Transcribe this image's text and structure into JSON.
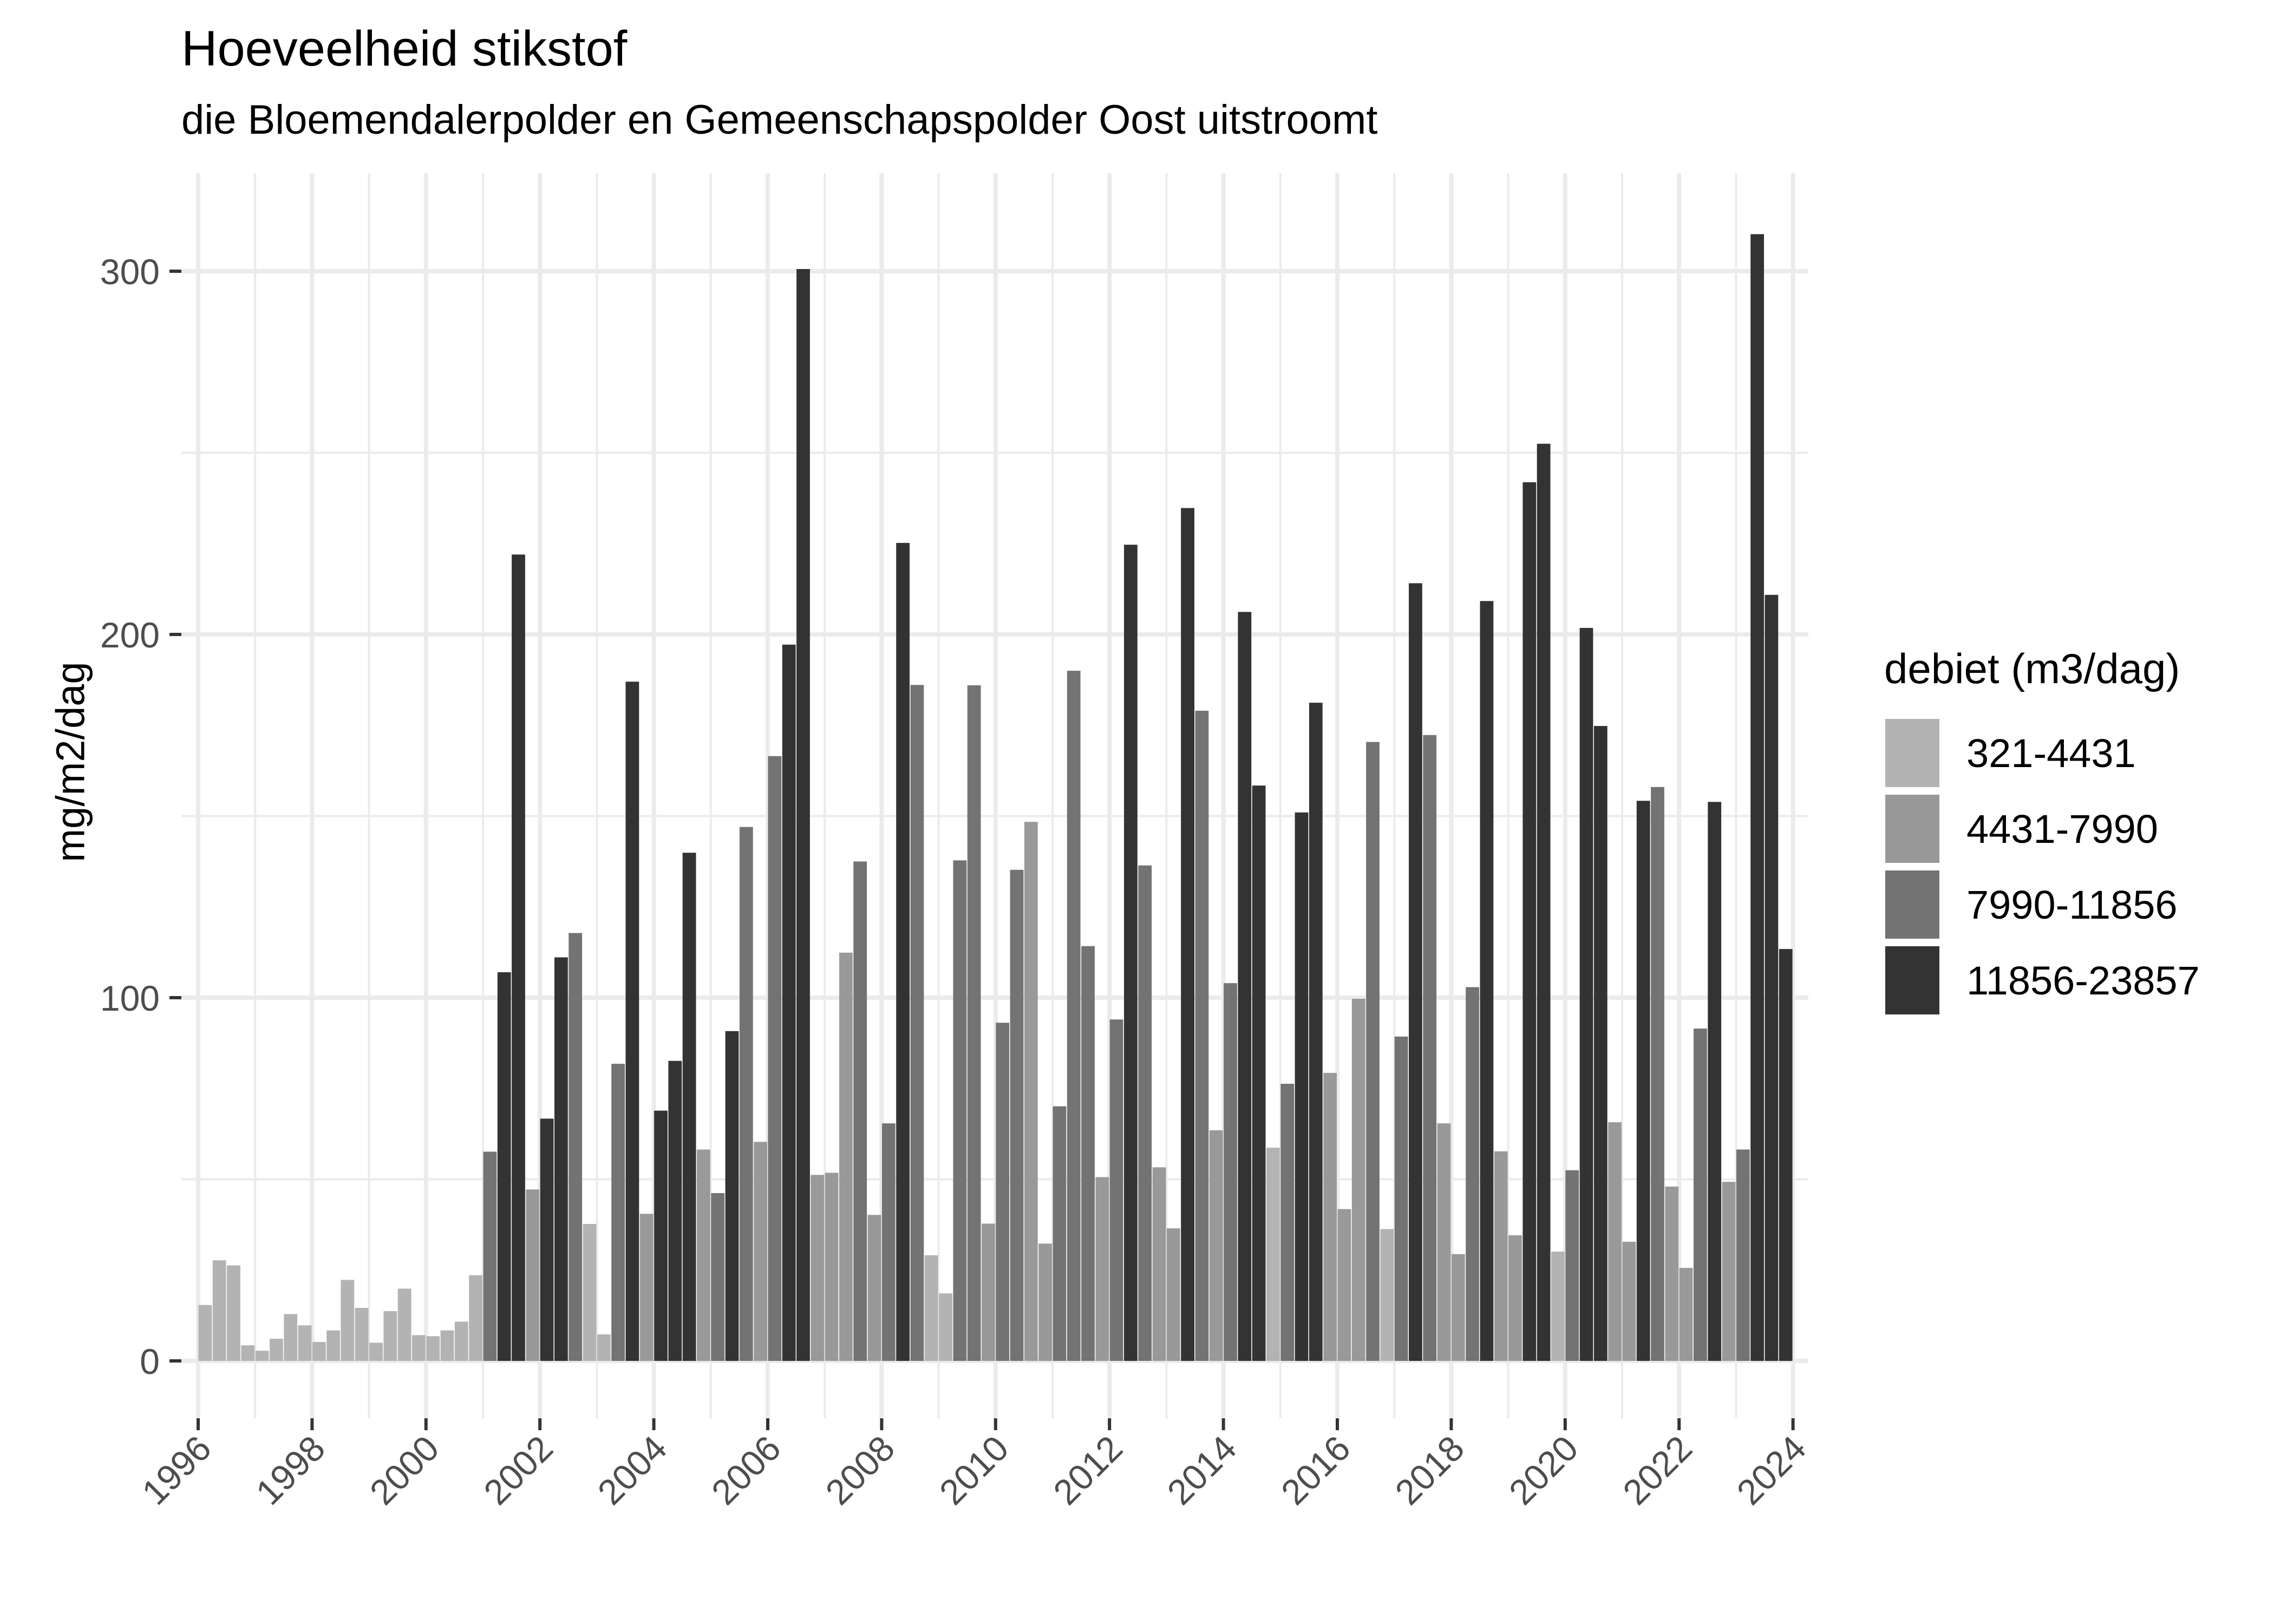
{
  "chart": {
    "title": "Hoeveelheid stikstof",
    "subtitle": "die Bloemendalerpolder en Gemeenschapspolder Oost uitstroomt",
    "ylabel": "mg/m2/dag",
    "legend_title": "debiet (m3/dag)"
  },
  "legend": [
    {
      "label": "321-4431",
      "color": "#B3B3B3"
    },
    {
      "label": "4431-7990",
      "color": "#999999"
    },
    {
      "label": "7990-11856",
      "color": "#737373"
    },
    {
      "label": "11856-23857",
      "color": "#333333"
    }
  ],
  "axes": {
    "y_ticks": [
      0,
      100,
      200,
      300
    ],
    "x_ticks": [
      "1996",
      "1998",
      "2000",
      "2002",
      "2004",
      "2006",
      "2008",
      "2010",
      "2012",
      "2014",
      "2016",
      "2018",
      "2020",
      "2022",
      "2024"
    ]
  },
  "chart_data": {
    "type": "bar",
    "title": "Hoeveelheid stikstof",
    "subtitle": "die Bloemendalerpolder en Gemeenschapspolder Oost uitstroomt",
    "xlabel": "",
    "ylabel": "mg/m2/dag",
    "ylim": [
      0,
      325
    ],
    "xlim": [
      1996,
      2024
    ],
    "grid": true,
    "legend_position": "right",
    "legend_title": "debiet (m3/dag)",
    "x_tick_labels": [
      "1996",
      "1998",
      "2000",
      "2002",
      "2004",
      "2006",
      "2008",
      "2010",
      "2012",
      "2014",
      "2016",
      "2018",
      "2020",
      "2022",
      "2024"
    ],
    "y_tick_labels": [
      "0",
      "100",
      "200",
      "300"
    ],
    "categories_note": "quarterly bars, color = flow class",
    "classes": [
      "321-4431",
      "4431-7990",
      "7990-11856",
      "11856-23857"
    ],
    "bars": [
      {
        "period": "1996-Q1",
        "value": 15.4,
        "class": "321-4431"
      },
      {
        "period": "1996-Q2",
        "value": 27.7,
        "class": "321-4431"
      },
      {
        "period": "1996-Q3",
        "value": 26.3,
        "class": "321-4431"
      },
      {
        "period": "1996-Q4",
        "value": 4.3,
        "class": "321-4431"
      },
      {
        "period": "1997-Q1",
        "value": 2.8,
        "class": "321-4431"
      },
      {
        "period": "1997-Q2",
        "value": 6.1,
        "class": "321-4431"
      },
      {
        "period": "1997-Q3",
        "value": 12.9,
        "class": "321-4431"
      },
      {
        "period": "1997-Q4",
        "value": 9.8,
        "class": "321-4431"
      },
      {
        "period": "1998-Q1",
        "value": 5.2,
        "class": "321-4431"
      },
      {
        "period": "1998-Q2",
        "value": 8.4,
        "class": "321-4431"
      },
      {
        "period": "1998-Q3",
        "value": 22.3,
        "class": "321-4431"
      },
      {
        "period": "1998-Q4",
        "value": 14.6,
        "class": "321-4431"
      },
      {
        "period": "1999-Q1",
        "value": 5.0,
        "class": "321-4431"
      },
      {
        "period": "1999-Q2",
        "value": 13.7,
        "class": "321-4431"
      },
      {
        "period": "1999-Q3",
        "value": 19.9,
        "class": "321-4431"
      },
      {
        "period": "1999-Q4",
        "value": 7.1,
        "class": "321-4431"
      },
      {
        "period": "2000-Q1",
        "value": 6.8,
        "class": "321-4431"
      },
      {
        "period": "2000-Q2",
        "value": 8.4,
        "class": "321-4431"
      },
      {
        "period": "2000-Q3",
        "value": 10.8,
        "class": "321-4431"
      },
      {
        "period": "2000-Q4",
        "value": 23.6,
        "class": "321-4431"
      },
      {
        "period": "2001-Q1",
        "value": 57.6,
        "class": "7990-11856"
      },
      {
        "period": "2001-Q2",
        "value": 107.0,
        "class": "11856-23857"
      },
      {
        "period": "2001-Q3",
        "value": 222.0,
        "class": "11856-23857"
      },
      {
        "period": "2001-Q4",
        "value": 47.2,
        "class": "4431-7990"
      },
      {
        "period": "2002-Q1",
        "value": 66.7,
        "class": "11856-23857"
      },
      {
        "period": "2002-Q2",
        "value": 111.1,
        "class": "11856-23857"
      },
      {
        "period": "2002-Q3",
        "value": 117.8,
        "class": "7990-11856"
      },
      {
        "period": "2002-Q4",
        "value": 37.7,
        "class": "321-4431"
      },
      {
        "period": "2003-Q1",
        "value": 7.3,
        "class": "321-4431"
      },
      {
        "period": "2003-Q2",
        "value": 81.8,
        "class": "7990-11856"
      },
      {
        "period": "2003-Q3",
        "value": 187.0,
        "class": "11856-23857"
      },
      {
        "period": "2003-Q4",
        "value": 40.5,
        "class": "4431-7990"
      },
      {
        "period": "2004-Q1",
        "value": 68.9,
        "class": "11856-23857"
      },
      {
        "period": "2004-Q2",
        "value": 82.6,
        "class": "11856-23857"
      },
      {
        "period": "2004-Q3",
        "value": 139.9,
        "class": "11856-23857"
      },
      {
        "period": "2004-Q4",
        "value": 58.2,
        "class": "4431-7990"
      },
      {
        "period": "2005-Q1",
        "value": 46.2,
        "class": "7990-11856"
      },
      {
        "period": "2005-Q2",
        "value": 90.8,
        "class": "11856-23857"
      },
      {
        "period": "2005-Q3",
        "value": 147.0,
        "class": "7990-11856"
      },
      {
        "period": "2005-Q4",
        "value": 60.3,
        "class": "4431-7990"
      },
      {
        "period": "2006-Q1",
        "value": 166.5,
        "class": "7990-11856"
      },
      {
        "period": "2006-Q2",
        "value": 197.2,
        "class": "11856-23857"
      },
      {
        "period": "2006-Q3",
        "value": 300.6,
        "class": "11856-23857"
      },
      {
        "period": "2006-Q4",
        "value": 51.2,
        "class": "4431-7990"
      },
      {
        "period": "2007-Q1",
        "value": 51.8,
        "class": "4431-7990"
      },
      {
        "period": "2007-Q2",
        "value": 112.4,
        "class": "4431-7990"
      },
      {
        "period": "2007-Q3",
        "value": 137.5,
        "class": "7990-11856"
      },
      {
        "period": "2007-Q4",
        "value": 40.2,
        "class": "4431-7990"
      },
      {
        "period": "2008-Q1",
        "value": 65.4,
        "class": "7990-11856"
      },
      {
        "period": "2008-Q2",
        "value": 225.2,
        "class": "11856-23857"
      },
      {
        "period": "2008-Q3",
        "value": 186.1,
        "class": "7990-11856"
      },
      {
        "period": "2008-Q4",
        "value": 29.1,
        "class": "321-4431"
      },
      {
        "period": "2009-Q1",
        "value": 18.6,
        "class": "321-4431"
      },
      {
        "period": "2009-Q2",
        "value": 137.8,
        "class": "7990-11856"
      },
      {
        "period": "2009-Q3",
        "value": 186.0,
        "class": "7990-11856"
      },
      {
        "period": "2009-Q4",
        "value": 37.8,
        "class": "4431-7990"
      },
      {
        "period": "2010-Q1",
        "value": 93.1,
        "class": "7990-11856"
      },
      {
        "period": "2010-Q2",
        "value": 135.2,
        "class": "7990-11856"
      },
      {
        "period": "2010-Q3",
        "value": 148.4,
        "class": "4431-7990"
      },
      {
        "period": "2010-Q4",
        "value": 32.3,
        "class": "4431-7990"
      },
      {
        "period": "2011-Q1",
        "value": 70.1,
        "class": "7990-11856"
      },
      {
        "period": "2011-Q2",
        "value": 190.0,
        "class": "7990-11856"
      },
      {
        "period": "2011-Q3",
        "value": 114.2,
        "class": "7990-11856"
      },
      {
        "period": "2011-Q4",
        "value": 50.6,
        "class": "4431-7990"
      },
      {
        "period": "2012-Q1",
        "value": 94.0,
        "class": "7990-11856"
      },
      {
        "period": "2012-Q2",
        "value": 224.7,
        "class": "11856-23857"
      },
      {
        "period": "2012-Q3",
        "value": 136.4,
        "class": "7990-11856"
      },
      {
        "period": "2012-Q4",
        "value": 53.3,
        "class": "4431-7990"
      },
      {
        "period": "2013-Q1",
        "value": 36.5,
        "class": "4431-7990"
      },
      {
        "period": "2013-Q2",
        "value": 234.8,
        "class": "11856-23857"
      },
      {
        "period": "2013-Q3",
        "value": 179.0,
        "class": "7990-11856"
      },
      {
        "period": "2013-Q4",
        "value": 63.5,
        "class": "4431-7990"
      },
      {
        "period": "2014-Q1",
        "value": 104.0,
        "class": "7990-11856"
      },
      {
        "period": "2014-Q2",
        "value": 206.2,
        "class": "11856-23857"
      },
      {
        "period": "2014-Q3",
        "value": 158.4,
        "class": "11856-23857"
      },
      {
        "period": "2014-Q4",
        "value": 58.7,
        "class": "321-4431"
      },
      {
        "period": "2015-Q1",
        "value": 76.3,
        "class": "7990-11856"
      },
      {
        "period": "2015-Q2",
        "value": 151.0,
        "class": "11856-23857"
      },
      {
        "period": "2015-Q3",
        "value": 181.2,
        "class": "11856-23857"
      },
      {
        "period": "2015-Q4",
        "value": 79.3,
        "class": "4431-7990"
      },
      {
        "period": "2016-Q1",
        "value": 41.8,
        "class": "4431-7990"
      },
      {
        "period": "2016-Q2",
        "value": 99.7,
        "class": "4431-7990"
      },
      {
        "period": "2016-Q3",
        "value": 170.4,
        "class": "7990-11856"
      },
      {
        "period": "2016-Q4",
        "value": 36.3,
        "class": "321-4431"
      },
      {
        "period": "2017-Q1",
        "value": 89.3,
        "class": "7990-11856"
      },
      {
        "period": "2017-Q2",
        "value": 214.1,
        "class": "11856-23857"
      },
      {
        "period": "2017-Q3",
        "value": 172.3,
        "class": "7990-11856"
      },
      {
        "period": "2017-Q4",
        "value": 65.4,
        "class": "4431-7990"
      },
      {
        "period": "2018-Q1",
        "value": 29.4,
        "class": "4431-7990"
      },
      {
        "period": "2018-Q2",
        "value": 102.9,
        "class": "7990-11856"
      },
      {
        "period": "2018-Q3",
        "value": 209.2,
        "class": "11856-23857"
      },
      {
        "period": "2018-Q4",
        "value": 57.7,
        "class": "4431-7990"
      },
      {
        "period": "2019-Q1",
        "value": 34.6,
        "class": "4431-7990"
      },
      {
        "period": "2019-Q2",
        "value": 241.9,
        "class": "11856-23857"
      },
      {
        "period": "2019-Q3",
        "value": 252.5,
        "class": "11856-23857"
      },
      {
        "period": "2019-Q4",
        "value": 30.1,
        "class": "321-4431"
      },
      {
        "period": "2020-Q1",
        "value": 52.5,
        "class": "7990-11856"
      },
      {
        "period": "2020-Q2",
        "value": 201.8,
        "class": "11856-23857"
      },
      {
        "period": "2020-Q3",
        "value": 174.8,
        "class": "11856-23857"
      },
      {
        "period": "2020-Q4",
        "value": 65.7,
        "class": "4431-7990"
      },
      {
        "period": "2021-Q1",
        "value": 32.8,
        "class": "4431-7990"
      },
      {
        "period": "2021-Q2",
        "value": 154.2,
        "class": "11856-23857"
      },
      {
        "period": "2021-Q3",
        "value": 158.0,
        "class": "7990-11856"
      },
      {
        "period": "2021-Q4",
        "value": 48.0,
        "class": "4431-7990"
      },
      {
        "period": "2022-Q1",
        "value": 25.6,
        "class": "4431-7990"
      },
      {
        "period": "2022-Q2",
        "value": 91.5,
        "class": "7990-11856"
      },
      {
        "period": "2022-Q3",
        "value": 153.9,
        "class": "11856-23857"
      },
      {
        "period": "2022-Q4",
        "value": 49.3,
        "class": "4431-7990"
      },
      {
        "period": "2023-Q1",
        "value": 58.2,
        "class": "7990-11856"
      },
      {
        "period": "2023-Q2",
        "value": 310.2,
        "class": "11856-23857"
      },
      {
        "period": "2023-Q3",
        "value": 210.9,
        "class": "11856-23857"
      },
      {
        "period": "2023-Q4",
        "value": 113.4,
        "class": "11856-23857"
      }
    ]
  }
}
